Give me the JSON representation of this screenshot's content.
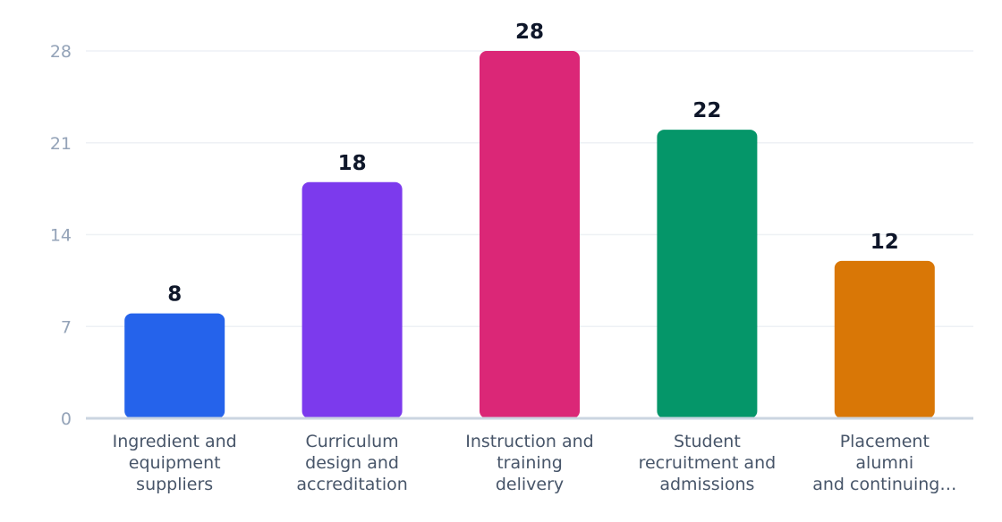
{
  "chart_data": {
    "type": "bar",
    "title": "",
    "xlabel": "",
    "ylabel": "",
    "categories": [
      [
        "Ingredient and",
        "equipment",
        "suppliers"
      ],
      [
        "Curriculum",
        "design and",
        "accreditation"
      ],
      [
        "Instruction and",
        "training",
        "delivery"
      ],
      [
        "Student",
        "recruitment and",
        "admissions"
      ],
      [
        "Placement",
        "alumni",
        "and continuing…"
      ]
    ],
    "values": [
      8,
      18,
      28,
      22,
      12
    ],
    "data_labels": [
      "8",
      "18",
      "28",
      "22",
      "12"
    ],
    "colors": [
      "#2563eb",
      "#7c3aed",
      "#db2777",
      "#059669",
      "#d97706"
    ],
    "ylim": [
      0,
      28
    ],
    "yticks": [
      0,
      7,
      14,
      21,
      28
    ],
    "ytick_labels": [
      "0",
      "7",
      "14",
      "21",
      "28"
    ],
    "grid": true,
    "legend": "none"
  }
}
